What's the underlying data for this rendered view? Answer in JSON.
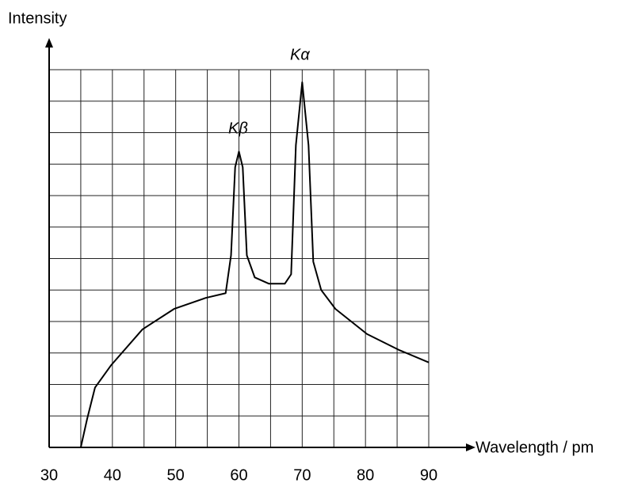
{
  "chart_data": {
    "type": "line",
    "y_label": "Intensity",
    "x_label": "Wavelength / pm",
    "annotations": [
      "Kβ",
      "Kα"
    ],
    "x": [
      35,
      36,
      37.25,
      39.75,
      44.75,
      49.75,
      54.75,
      57.9,
      58.75,
      59.4,
      60,
      60.6,
      61.25,
      62.5,
      64.75,
      67.25,
      68.25,
      69,
      70,
      71,
      71.75,
      73,
      75.25,
      80.25,
      85.25,
      90
    ],
    "series": [
      {
        "color": "#000000",
        "values": [
          0,
          0.9,
          1.9,
          2.6,
          3.75,
          4.4,
          4.75,
          4.9,
          6.1,
          8.9,
          9.4,
          8.9,
          6.1,
          5.4,
          5.2,
          5.2,
          5.5,
          9.6,
          11.6,
          9.6,
          5.9,
          5.0,
          4.4,
          3.6,
          3.1,
          2.7
        ]
      }
    ],
    "xlim": [
      30,
      90
    ],
    "ylim": [
      0,
      12
    ],
    "xticks": [
      30,
      40,
      50,
      60,
      70,
      80,
      90
    ],
    "grid": true
  }
}
